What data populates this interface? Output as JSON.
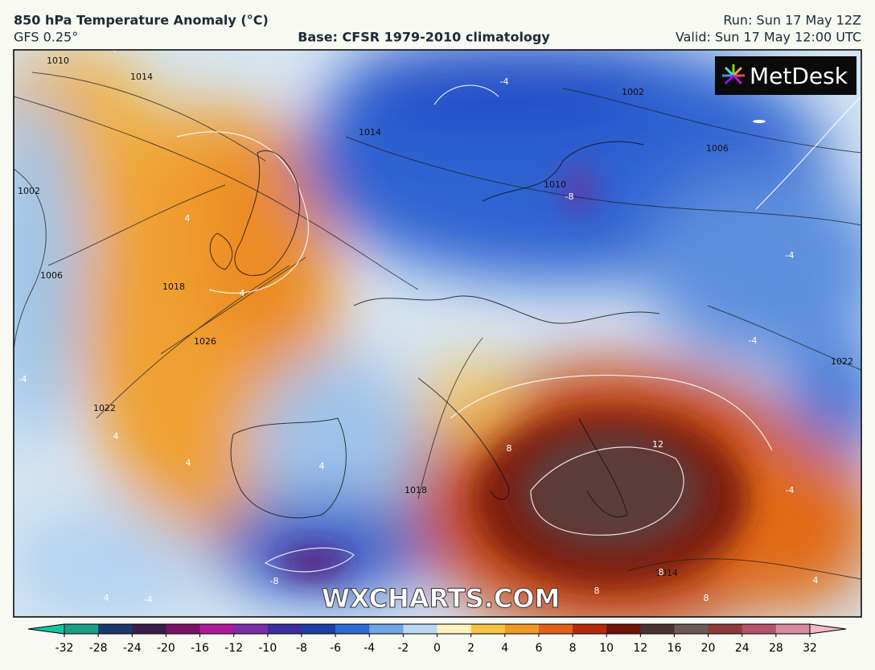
{
  "header": {
    "title": "850 hPa Temperature Anomaly (°C)",
    "model": "GFS 0.25°",
    "base": "Base: CFSR 1979-2010 climatology",
    "run": "Run: Sun 17 May 12Z",
    "valid": "Valid: Sun 17 May 12:00 UTC"
  },
  "logo": "MetDesk",
  "watermark": "WXCHARTS.COM",
  "isobar_labels": [
    "1010",
    "1014",
    "1002",
    "1006",
    "1018",
    "1026",
    "1022",
    "1018",
    "1002",
    "1006",
    "1010",
    "1022",
    "1014",
    "1014"
  ],
  "anomaly_labels": [
    "-4",
    "4",
    "4",
    "-4",
    "-8",
    "-4",
    "-4",
    "4",
    "4",
    "-4",
    "4",
    "8",
    "12",
    "8",
    "8",
    "-8",
    "4",
    "-4",
    "-4",
    "4",
    "8"
  ],
  "colorbar": {
    "ticks": [
      -32,
      -28,
      -24,
      -20,
      -16,
      -12,
      -10,
      -8,
      -6,
      -4,
      -2,
      0,
      2,
      4,
      6,
      8,
      10,
      12,
      16,
      20,
      24,
      28,
      32
    ]
  }
}
